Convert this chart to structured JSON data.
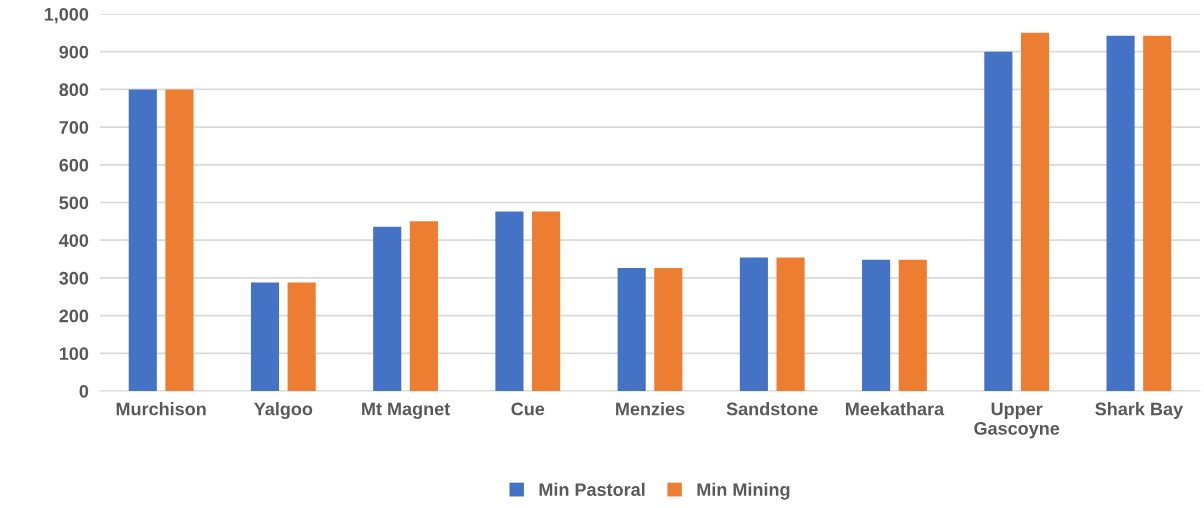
{
  "chart_data": {
    "type": "bar",
    "categories": [
      "Murchison",
      "Yalgoo",
      "Mt Magnet",
      "Cue",
      "Menzies",
      "Sandstone",
      "Meekathara",
      "Upper\nGascoyne",
      "Shark Bay"
    ],
    "series": [
      {
        "name": "Min Pastoral",
        "color": "#4472c4",
        "values": [
          800,
          288,
          436,
          476,
          326,
          354,
          348,
          900,
          942
        ]
      },
      {
        "name": "Min Mining",
        "color": "#ed7d31",
        "values": [
          800,
          288,
          450,
          476,
          326,
          354,
          348,
          950,
          942
        ]
      }
    ],
    "ylim": [
      0,
      1000
    ],
    "yticks": [
      0,
      100,
      200,
      300,
      400,
      500,
      600,
      700,
      800,
      900,
      {
        "value": 1000,
        "label": "1,000"
      }
    ],
    "grid": "y",
    "legend": "bottom"
  }
}
